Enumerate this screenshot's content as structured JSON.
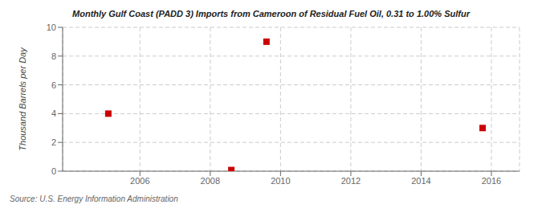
{
  "chart_data": {
    "type": "scatter",
    "title": "Monthly Gulf Coast (PADD 3) Imports from Cameroon of Residual Fuel Oil, 0.31 to 1.00% Sulfur",
    "ylabel": "Thousand Barrels per Day",
    "source": "Source: U.S. Energy Information Administration",
    "x": [
      2005.1,
      2008.6,
      2009.6,
      2015.75
    ],
    "values": [
      4.0,
      0.08,
      9.0,
      3.0
    ],
    "color": "#cc0000",
    "marker": "square",
    "xlim": [
      2003.8,
      2016.8
    ],
    "ylim": [
      0,
      10
    ],
    "xticks": [
      2006,
      2008,
      2010,
      2012,
      2014,
      2016
    ],
    "yticks": [
      0,
      2,
      4,
      6,
      8,
      10
    ],
    "grid": true
  }
}
